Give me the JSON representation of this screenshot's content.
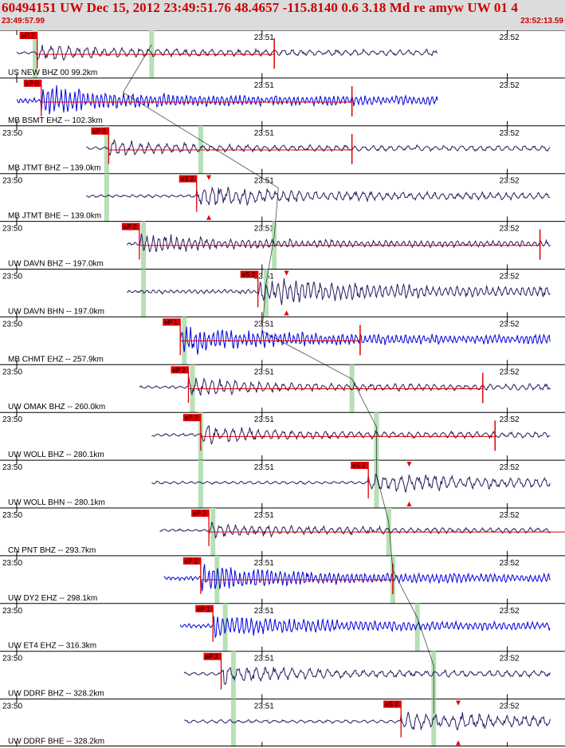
{
  "header": {
    "title": "60494151 UW Dec 15, 2012 23:49:51.76   48.4657 -115.8140  0.6 3.18 Md re amyw UW 01   4",
    "start_time": "23:49:57.99",
    "end_time": "23:52:13.59"
  },
  "colors": {
    "header_bg": "#dcdcdc",
    "header_text": "#cc0000",
    "trace_dark": "#2a1a5e",
    "trace_blue": "#0000dd",
    "pick_red": "#dd0000",
    "window_green": "#b6e0b6",
    "curve": "#000000"
  },
  "chart_data": {
    "type": "line",
    "x_axis": {
      "unit": "time",
      "start": "23:49:57.99",
      "end": "23:52:13.59",
      "tick_labels": [
        "23:50",
        "23:51",
        "23:52"
      ],
      "tick_times": [
        "23:50:00",
        "23:51:00",
        "23:52:00"
      ]
    },
    "trace_start_offset_s": 2.01,
    "trace_end_offset_s": 137.6,
    "panels": [
      {
        "label": "US NEW BHZ 00 99.2km",
        "color": "dark",
        "tick_labels": [
          "23:51",
          "23:52"
        ],
        "trace_start": 0,
        "trace_end": 103,
        "amp": 0.55,
        "freq": 1.6,
        "pick": "eP 2",
        "pick_t": 5,
        "green": [
          4.5,
          33
        ],
        "coda_t": 63,
        "marker": null
      },
      {
        "label": "MB BSMT EHZ -- 102.3km",
        "color": "blue",
        "tick_labels": [
          "23:51",
          "23:52"
        ],
        "trace_start": 0,
        "trace_end": 103,
        "amp": 0.85,
        "freq": 3.2,
        "pick": "eP 0",
        "pick_t": 6,
        "green": [],
        "coda_t": 82,
        "marker": null
      },
      {
        "label": "MB JTMT BHZ -- 139.0km",
        "color": "dark",
        "tick_labels": [
          "23:50",
          "23:51",
          "23:52"
        ],
        "trace_start": 17,
        "trace_end": 137.5,
        "amp": 0.5,
        "freq": 1.6,
        "pick": "eP 2",
        "pick_t": 22.5,
        "green": [
          22,
          45
        ],
        "coda_t": 82,
        "marker": null
      },
      {
        "label": "MB JTMT BHE -- 139.0km",
        "color": "dark",
        "tick_labels": [
          "23:50",
          "23:51",
          "23:52"
        ],
        "trace_start": 17,
        "trace_end": 137.5,
        "amp": 0.5,
        "freq": 1.8,
        "pick": "eS 2",
        "pick_t": 44,
        "green": [
          22
        ],
        "coda_t": null,
        "marker": 47
      },
      {
        "label": "UW DAVN BHZ -- 197.0km",
        "color": "dark",
        "tick_labels": [
          "23:50",
          "23:51",
          "23:52"
        ],
        "trace_start": 27,
        "trace_end": 148,
        "amp": 0.6,
        "freq": 2.4,
        "pick": "eP 2",
        "pick_t": 30,
        "green": [
          31,
          63
        ],
        "coda_t": 128,
        "marker": null
      },
      {
        "label": "UW DAVN BHN -- 197.0km",
        "color": "dark",
        "tick_labels": [
          "23:50",
          "23:51",
          "23:52"
        ],
        "trace_start": 27,
        "trace_end": 148,
        "amp": 0.7,
        "freq": 2.4,
        "pick": "eS 2",
        "pick_t": 59,
        "green": [
          31,
          61
        ],
        "coda_t": null,
        "marker": 66
      },
      {
        "label": "MB CHMT EHZ -- 257.9km",
        "color": "blue",
        "tick_labels": [
          "23:50",
          "23:51",
          "23:52"
        ],
        "trace_start": 40,
        "trace_end": 160,
        "amp": 0.85,
        "freq": 3.2,
        "pick": "eP 1",
        "pick_t": 40,
        "green": [
          41
        ],
        "coda_t": 84,
        "marker": null
      },
      {
        "label": "UW OMAK BHZ -- 260.0km",
        "color": "dark",
        "tick_labels": [
          "23:50",
          "23:51",
          "23:52"
        ],
        "trace_start": 30,
        "trace_end": 160,
        "amp": 0.55,
        "freq": 1.8,
        "pick": "eP 2",
        "pick_t": 42,
        "green": [
          43,
          82
        ],
        "coda_t": 114,
        "marker": null
      },
      {
        "label": "UW WOLL BHZ -- 280.1km",
        "color": "dark",
        "tick_labels": [
          "23:50",
          "23:51",
          "23:52"
        ],
        "trace_start": 33,
        "trace_end": 162,
        "amp": 0.55,
        "freq": 1.7,
        "pick": "eP 2",
        "pick_t": 45,
        "green": [
          45,
          88
        ],
        "coda_t": 117,
        "marker": null
      },
      {
        "label": "UW WOLL BHN -- 280.1km",
        "color": "dark",
        "tick_labels": [
          "23:50",
          "23:51",
          "23:52"
        ],
        "trace_start": 33,
        "trace_end": 162,
        "amp": 0.55,
        "freq": 1.7,
        "pick": "eS 2",
        "pick_t": 86,
        "green": [
          45,
          88
        ],
        "coda_t": null,
        "marker": 96
      },
      {
        "label": "CN PNT BHZ -- 293.7km",
        "color": "dark",
        "tick_labels": [
          "23:50",
          "23:51",
          "23:52"
        ],
        "trace_start": 35,
        "trace_end": 165,
        "amp": 0.5,
        "freq": 1.8,
        "pick": "eP 2",
        "pick_t": 47,
        "green": [
          48,
          91
        ],
        "coda_t": 150,
        "marker": null
      },
      {
        "label": "UW DY2 EHZ -- 298.1km",
        "color": "blue",
        "tick_labels": [
          "23:50",
          "23:51",
          "23:52"
        ],
        "trace_start": 36,
        "trace_end": 166,
        "amp": 0.8,
        "freq": 3.2,
        "pick": "eP 2",
        "pick_t": 45,
        "green": [
          49,
          92
        ],
        "coda_t": 92,
        "marker": null
      },
      {
        "label": "UW ET4 EHZ -- 316.3km",
        "color": "blue",
        "tick_labels": [
          "23:50",
          "23:51",
          "23:52"
        ],
        "trace_start": 40,
        "trace_end": 168,
        "amp": 0.75,
        "freq": 3.0,
        "pick": "eP 1",
        "pick_t": 48,
        "green": [
          51,
          98
        ],
        "coda_t": null,
        "marker": null
      },
      {
        "label": "UW DDRF BHZ -- 328.2km",
        "color": "dark",
        "tick_labels": [
          "23:50",
          "23:51",
          "23:52"
        ],
        "trace_start": 41,
        "trace_end": 168,
        "amp": 0.55,
        "freq": 1.6,
        "pick": "eP 2",
        "pick_t": 50,
        "green": [
          53,
          102
        ],
        "coda_t": null,
        "marker": null
      },
      {
        "label": "UW DDRF BHE -- 328.2km",
        "color": "dark",
        "tick_labels": [
          "23:50",
          "23:51",
          "23:52"
        ],
        "trace_start": 41,
        "trace_end": 168,
        "amp": 0.6,
        "freq": 1.6,
        "pick": "eS 2",
        "pick_t": 94,
        "green": [
          53,
          102
        ],
        "coda_t": null,
        "marker": 108
      }
    ]
  }
}
